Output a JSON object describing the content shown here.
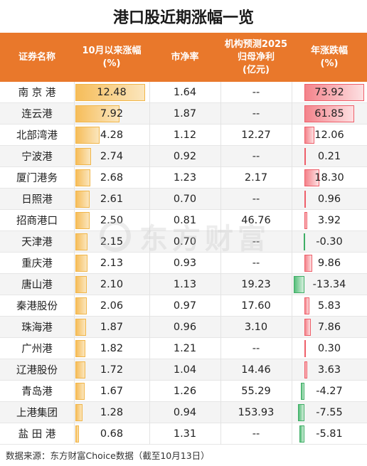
{
  "title": "港口股近期涨幅一览",
  "headers": [
    "证券名称",
    "10月以来涨幅\n(%)",
    "市净率",
    "机构预测2025\n归母净利\n(亿元)",
    "年涨跌幅\n(%)"
  ],
  "footer": "数据来源：东方财富Choice数据（截至10月13日）",
  "watermark": "东方财富",
  "colors": {
    "header": "#e9782b",
    "gold_bar": "#f6bd5a",
    "red_bar": "#ee5f6a",
    "green_bar": "#3fae66"
  },
  "rows": [
    {
      "name": "南 京 港",
      "oct_gain": "12.48",
      "pb": "1.64",
      "forecast": "--",
      "year_change": "73.92"
    },
    {
      "name": "连云港",
      "oct_gain": "7.92",
      "pb": "1.87",
      "forecast": "--",
      "year_change": "61.85"
    },
    {
      "name": "北部湾港",
      "oct_gain": "4.28",
      "pb": "1.12",
      "forecast": "12.27",
      "year_change": "12.06"
    },
    {
      "name": "宁波港",
      "oct_gain": "2.74",
      "pb": "0.92",
      "forecast": "--",
      "year_change": "0.21"
    },
    {
      "name": "厦门港务",
      "oct_gain": "2.68",
      "pb": "1.23",
      "forecast": "2.17",
      "year_change": "18.30"
    },
    {
      "name": "日照港",
      "oct_gain": "2.61",
      "pb": "0.70",
      "forecast": "--",
      "year_change": "0.96"
    },
    {
      "name": "招商港口",
      "oct_gain": "2.50",
      "pb": "0.81",
      "forecast": "46.76",
      "year_change": "3.92"
    },
    {
      "name": "天津港",
      "oct_gain": "2.15",
      "pb": "0.70",
      "forecast": "--",
      "year_change": "-0.30"
    },
    {
      "name": "重庆港",
      "oct_gain": "2.13",
      "pb": "0.93",
      "forecast": "--",
      "year_change": "9.86"
    },
    {
      "name": "唐山港",
      "oct_gain": "2.10",
      "pb": "1.13",
      "forecast": "19.23",
      "year_change": "-13.34"
    },
    {
      "name": "秦港股份",
      "oct_gain": "2.06",
      "pb": "0.97",
      "forecast": "17.60",
      "year_change": "5.83"
    },
    {
      "name": "珠海港",
      "oct_gain": "1.87",
      "pb": "0.96",
      "forecast": "3.10",
      "year_change": "7.86"
    },
    {
      "name": "广州港",
      "oct_gain": "1.82",
      "pb": "1.21",
      "forecast": "--",
      "year_change": "0.30"
    },
    {
      "name": "辽港股份",
      "oct_gain": "1.72",
      "pb": "1.04",
      "forecast": "14.46",
      "year_change": "3.63"
    },
    {
      "name": "青岛港",
      "oct_gain": "1.67",
      "pb": "1.26",
      "forecast": "55.29",
      "year_change": "-4.27"
    },
    {
      "name": "上港集团",
      "oct_gain": "1.28",
      "pb": "0.94",
      "forecast": "153.93",
      "year_change": "-7.55"
    },
    {
      "name": "盐 田 港",
      "oct_gain": "0.68",
      "pb": "1.31",
      "forecast": "--",
      "year_change": "-5.81"
    }
  ],
  "chart_data": {
    "type": "table",
    "title": "港口股近期涨幅一览",
    "columns": [
      "证券名称",
      "10月以来涨幅(%)",
      "市净率",
      "机构预测2025归母净利(亿元)",
      "年涨跌幅(%)"
    ],
    "categories": [
      "南 京 港",
      "连云港",
      "北部湾港",
      "宁波港",
      "厦门港务",
      "日照港",
      "招商港口",
      "天津港",
      "重庆港",
      "唐山港",
      "秦港股份",
      "珠海港",
      "广州港",
      "辽港股份",
      "青岛港",
      "上港集团",
      "盐 田 港"
    ],
    "series": [
      {
        "name": "10月以来涨幅(%)",
        "values": [
          12.48,
          7.92,
          4.28,
          2.74,
          2.68,
          2.61,
          2.5,
          2.15,
          2.13,
          2.1,
          2.06,
          1.87,
          1.82,
          1.72,
          1.67,
          1.28,
          0.68
        ]
      },
      {
        "name": "市净率",
        "values": [
          1.64,
          1.87,
          1.12,
          0.92,
          1.23,
          0.7,
          0.81,
          0.7,
          0.93,
          1.13,
          0.97,
          0.96,
          1.21,
          1.04,
          1.26,
          0.94,
          1.31
        ]
      },
      {
        "name": "机构预测2025归母净利(亿元)",
        "values": [
          null,
          null,
          12.27,
          null,
          2.17,
          null,
          46.76,
          null,
          null,
          19.23,
          17.6,
          3.1,
          null,
          14.46,
          55.29,
          153.93,
          null
        ]
      },
      {
        "name": "年涨跌幅(%)",
        "values": [
          73.92,
          61.85,
          12.06,
          0.21,
          18.3,
          0.96,
          3.92,
          -0.3,
          9.86,
          -13.34,
          5.83,
          7.86,
          0.3,
          3.63,
          -4.27,
          -7.55,
          -5.81
        ]
      }
    ]
  }
}
